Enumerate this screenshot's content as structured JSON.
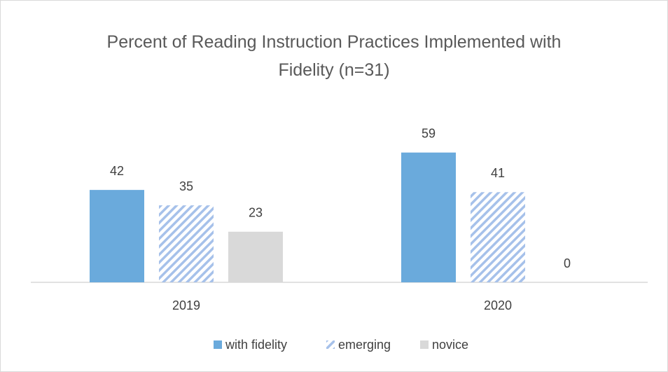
{
  "chart_data": {
    "type": "bar",
    "title": "Percent of Reading Instruction Practices Implemented with Fidelity (n=31)",
    "categories": [
      "2019",
      "2020"
    ],
    "series": [
      {
        "name": "with fidelity",
        "color": "#6aaadc",
        "values": [
          42,
          59
        ]
      },
      {
        "name": "emerging",
        "color": "#a6c1ea",
        "hatch": true,
        "values": [
          35,
          41
        ]
      },
      {
        "name": "novice",
        "color": "#d9d9d9",
        "values": [
          23,
          0
        ]
      }
    ],
    "legend": "bottom"
  }
}
